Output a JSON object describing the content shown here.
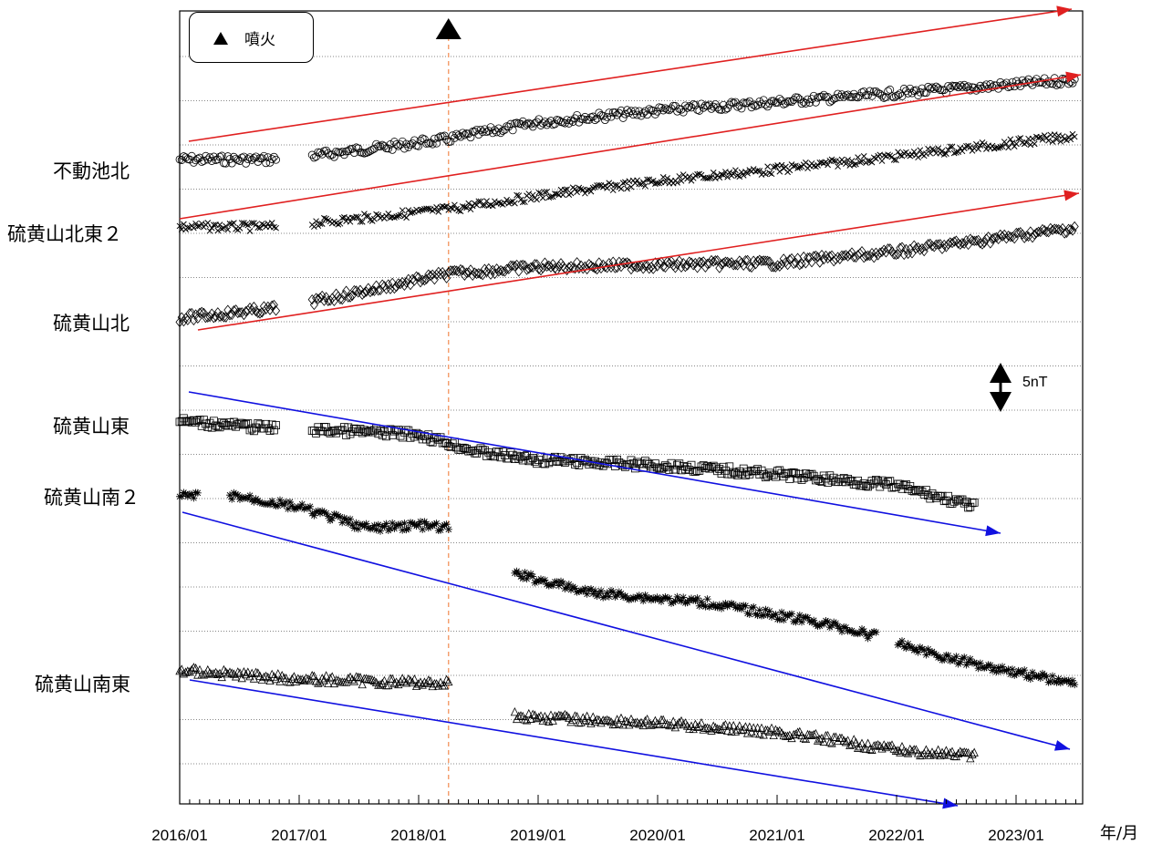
{
  "chart_data": {
    "type": "scatter",
    "title": "",
    "xlabel": "年/月",
    "ylabel": "",
    "x_ticks": [
      "2016/01",
      "2017/01",
      "2018/01",
      "2019/01",
      "2020/01",
      "2021/01",
      "2022/01",
      "2023/01"
    ],
    "x_range": [
      "2016/01",
      "2023/07"
    ],
    "grid": "horizontal dotted",
    "scale_bar": "5nT",
    "legend": {
      "symbol": "▲",
      "label": "噴火",
      "placement": "top-left"
    },
    "eruption_date": "2018/04",
    "series": [
      {
        "name": "不動池北",
        "marker": "circle",
        "points": [
          [
            "2016/01",
            0
          ],
          [
            "2016/10",
            0
          ],
          [
            "2017/03",
            0.5
          ],
          [
            "2018/04",
            2.3
          ],
          [
            "2019/01",
            4.2
          ],
          [
            "2020/01",
            5.5
          ],
          [
            "2021/01",
            6.5
          ],
          [
            "2022/01",
            7.5
          ],
          [
            "2023/07",
            9.0
          ]
        ],
        "trend": "increase"
      },
      {
        "name": "硫黄山北東２",
        "marker": "x",
        "points": [
          [
            "2016/01",
            0
          ],
          [
            "2016/10",
            0
          ],
          [
            "2017/03",
            0.5
          ],
          [
            "2018/04",
            2.0
          ],
          [
            "2019/01",
            3.5
          ],
          [
            "2020/01",
            5.2
          ],
          [
            "2021/01",
            6.5
          ],
          [
            "2022/01",
            8.0
          ],
          [
            "2023/07",
            10.3
          ]
        ],
        "trend": "increase"
      },
      {
        "name": "硫黄山北",
        "marker": "diamond",
        "points": [
          [
            "2016/01",
            0
          ],
          [
            "2016/10",
            1.0
          ],
          [
            "2017/03",
            2.0
          ],
          [
            "2018/04",
            5.0
          ],
          [
            "2019/01",
            5.8
          ],
          [
            "2020/01",
            6.0
          ],
          [
            "2021/01",
            6.2
          ],
          [
            "2022/01",
            7.5
          ],
          [
            "2023/07",
            10.2
          ]
        ],
        "trend": "increase"
      },
      {
        "name": "硫黄山東",
        "marker": "square",
        "points": [
          [
            "2016/01",
            0
          ],
          [
            "2016/10",
            -0.8
          ],
          [
            "2017/03",
            -1.0
          ],
          [
            "2018/01",
            -1.5
          ],
          [
            "2018/07",
            -3.5
          ],
          [
            "2019/01",
            -4.4
          ],
          [
            "2020/01",
            -5.0
          ],
          [
            "2021/01",
            -6.0
          ],
          [
            "2022/01",
            -7.3
          ],
          [
            "2022/09",
            -9.7
          ]
        ],
        "trend": "decrease"
      },
      {
        "name": "硫黄山南２",
        "marker": "asterisk",
        "points": [
          [
            "2016/01",
            0
          ],
          [
            "2016/06",
            0.2
          ],
          [
            "2017/01",
            -1.2
          ],
          [
            "2017/08",
            -3.6
          ],
          [
            "2018/01",
            -3.2
          ],
          [
            "2018/04",
            -3.6
          ],
          [
            "2018/11",
            -8.8
          ],
          [
            "2019/06",
            -10.8
          ],
          [
            "2020/06",
            -12.0
          ],
          [
            "2021/06",
            -14.4
          ],
          [
            "2021/11",
            -15.8
          ],
          [
            "2022/06",
            -18.2
          ],
          [
            "2023/07",
            -21.2
          ]
        ],
        "trend": "decrease"
      },
      {
        "name": "硫黄山南東",
        "marker": "triangle",
        "points": [
          [
            "2016/01",
            0
          ],
          [
            "2017/01",
            -1.0
          ],
          [
            "2018/04",
            -1.5
          ],
          [
            "2018/11",
            -5.2
          ],
          [
            "2020/01",
            -6.0
          ],
          [
            "2021/01",
            -7.0
          ],
          [
            "2022/01",
            -9.0
          ],
          [
            "2022/09",
            -9.8
          ]
        ],
        "trend": "decrease"
      }
    ]
  },
  "labels": {
    "station_1": "不動池北",
    "station_2": "硫黄山北東２",
    "station_3": "硫黄山北",
    "station_4": "硫黄山東",
    "station_5": "硫黄山南２",
    "station_6": "硫黄山南東",
    "legend_text": "噴火",
    "scale": "5nT",
    "unit": "年/月"
  },
  "colors": {
    "increase_arrow": "#e02020",
    "decrease_arrow": "#1010e0",
    "eruption_line": "#f4a070",
    "marker": "#000000"
  }
}
